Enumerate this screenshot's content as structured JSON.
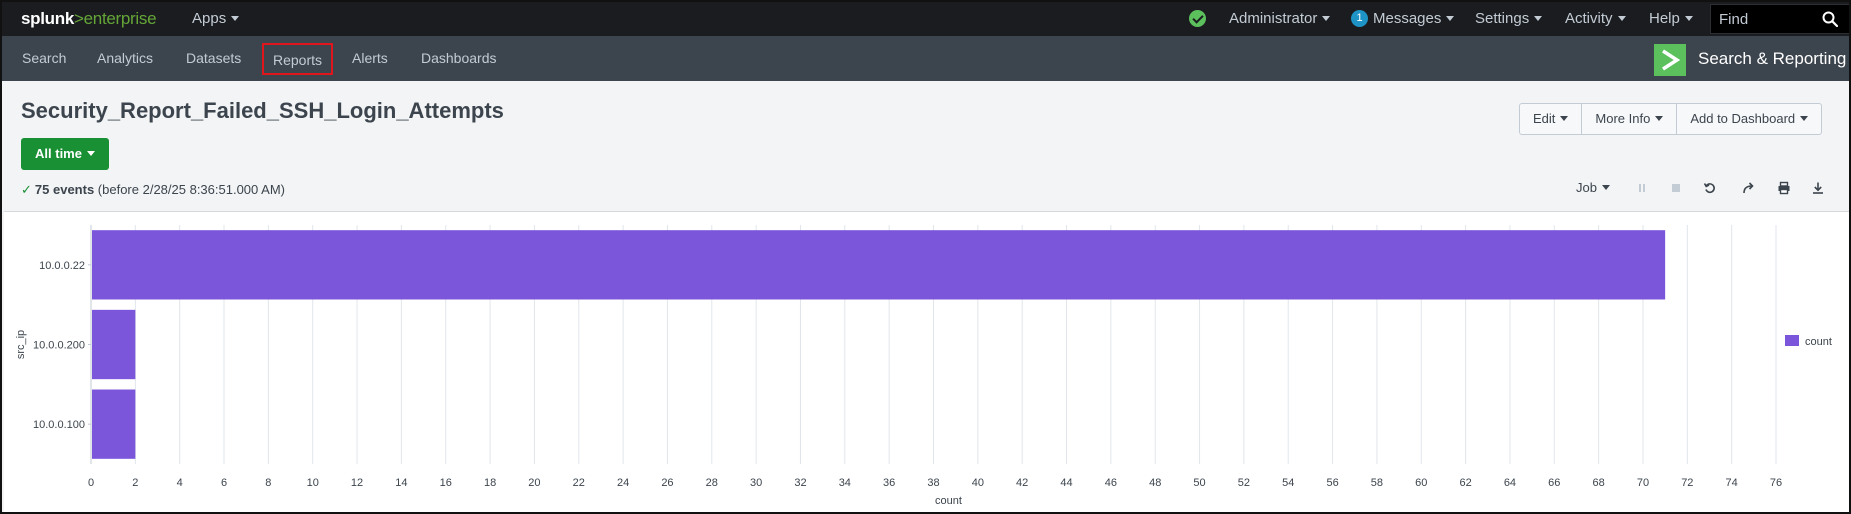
{
  "topbar": {
    "logo_main": "splunk",
    "logo_sep": ">",
    "logo_product": "enterprise",
    "apps": "Apps",
    "user": "Administrator",
    "messages_count": "1",
    "messages": "Messages",
    "settings": "Settings",
    "activity": "Activity",
    "help": "Help",
    "find_placeholder": "Find"
  },
  "appbar": {
    "nav": [
      "Search",
      "Analytics",
      "Datasets",
      "Reports",
      "Alerts",
      "Dashboards"
    ],
    "active": "Reports",
    "app_name": "Search & Reporting"
  },
  "header": {
    "title": "Security_Report_Failed_SSH_Login_Attempts",
    "edit": "Edit",
    "more_info": "More Info",
    "add_to_dashboard": "Add to Dashboard",
    "time_range": "All time",
    "event_count": "75 events",
    "event_detail": "(before 2/28/25 8:36:51.000 AM)",
    "job": "Job"
  },
  "colors": {
    "accent_green": "#1a9035",
    "bar": "#7b56db",
    "active_outline": "#e0161c"
  },
  "chart_data": {
    "type": "bar",
    "orientation": "horizontal",
    "categories": [
      "10.0.0.22",
      "10.0.0.200",
      "10.0.0.100"
    ],
    "series": [
      {
        "name": "count",
        "values": [
          71,
          2,
          2
        ]
      }
    ],
    "xlabel": "count",
    "ylabel": "src_ip",
    "xlim": [
      0,
      76
    ],
    "xticks": [
      0,
      2,
      4,
      6,
      8,
      10,
      12,
      14,
      16,
      18,
      20,
      22,
      24,
      26,
      28,
      30,
      32,
      34,
      36,
      38,
      40,
      42,
      44,
      46,
      48,
      50,
      52,
      54,
      56,
      58,
      60,
      62,
      64,
      66,
      68,
      70,
      72,
      74,
      76
    ],
    "grid": true,
    "legend_position": "right"
  }
}
